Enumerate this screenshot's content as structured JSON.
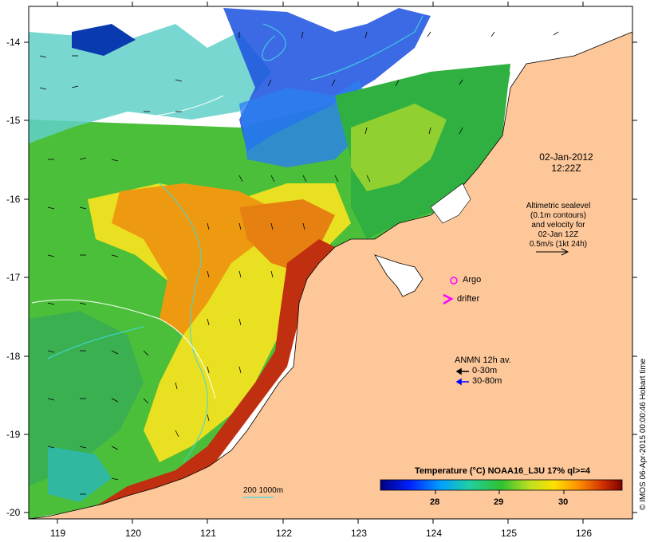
{
  "map": {
    "lat_ticks": [
      "-14",
      "-15",
      "-16",
      "-17",
      "-18",
      "-19",
      "-20"
    ],
    "lon_ticks": [
      "119",
      "120",
      "121",
      "122",
      "123",
      "124",
      "125",
      "126"
    ],
    "date_line1": "02-Jan-2012",
    "date_line2": "12:22Z",
    "sealevel_lines": [
      "Altimetric sealevel",
      "(0.1m contours)",
      "and velocity for",
      "02-Jan 12Z",
      "0.5m/s (1kt 24h)"
    ],
    "argo_label": "Argo",
    "drifter_label": "drifter",
    "anmn_title": "ANMN 12h av.",
    "anmn_items": [
      {
        "label": "0-30m",
        "color": "#000000"
      },
      {
        "label": "30-80m",
        "color": "#0000ff"
      }
    ],
    "depth_label": "200  1000m",
    "colorbar_title": "Temperature (°C) NOAA16_L3U 17% ql>=4",
    "colorbar_ticks": [
      "28",
      "29",
      "30"
    ],
    "credit": "© IMOS 06-Apr-2015 00:00:46 Hobart time",
    "colors": {
      "land": "#fdc79a",
      "argo": "#ff00ff",
      "drifter": "#ff00ff",
      "contour": "#40d8e0"
    }
  }
}
